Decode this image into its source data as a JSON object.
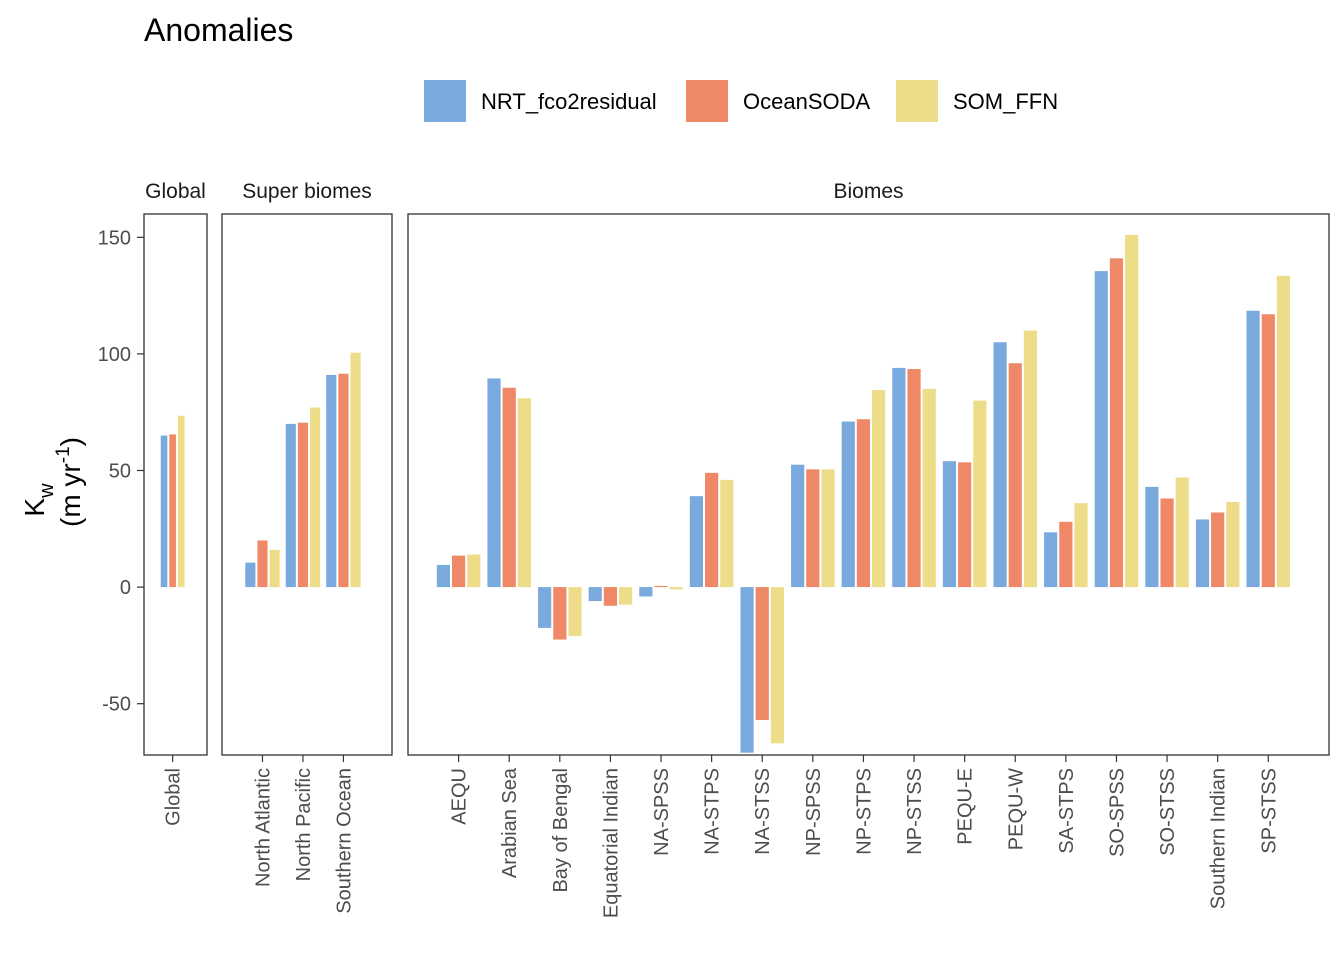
{
  "chart_data": {
    "type": "bar",
    "title": "Anomalies",
    "ylabel": {
      "base": "K",
      "sub": "w",
      "unit_open": "(m yr",
      "unit_sup": "-1",
      "unit_close": ")"
    },
    "ylim": [
      -72,
      160
    ],
    "yticks": [
      -50,
      0,
      50,
      100,
      150
    ],
    "legend_position": "top",
    "series": [
      {
        "name": "NRT_fco2residual",
        "color": "#7aaadd"
      },
      {
        "name": "OceanSODA",
        "color": "#ee8866"
      },
      {
        "name": "SOM_FFN",
        "color": "#eedd88"
      }
    ],
    "panels": [
      {
        "strip": "Global",
        "categories": [
          "Global"
        ],
        "values": [
          [
            65
          ],
          [
            65.5
          ],
          [
            73.5
          ]
        ]
      },
      {
        "strip": "Super biomes",
        "categories": [
          "North Atlantic",
          "North Pacific",
          "Southern Ocean"
        ],
        "values": [
          [
            10.5,
            70,
            91
          ],
          [
            20,
            70.5,
            91.5
          ],
          [
            16,
            77,
            100.5
          ]
        ]
      },
      {
        "strip": "Biomes",
        "categories": [
          "AEQU",
          "Arabian Sea",
          "Bay of Bengal",
          "Equatorial Indian",
          "NA-SPSS",
          "NA-STPS",
          "NA-STSS",
          "NP-SPSS",
          "NP-STPS",
          "NP-STSS",
          "PEQU-E",
          "PEQU-W",
          "SA-STPS",
          "SO-SPSS",
          "SO-STSS",
          "Southern Indian",
          "SP-STSS"
        ],
        "values": [
          [
            9.5,
            89.5,
            -17.5,
            -6,
            -4,
            39,
            -71,
            52.5,
            71,
            94,
            54,
            105,
            23.5,
            135.5,
            43,
            29,
            118.5
          ],
          [
            13.5,
            85.5,
            -22.5,
            -8,
            0.5,
            49,
            -57,
            50.5,
            72,
            93.5,
            53.5,
            96,
            28,
            141,
            38,
            32,
            117
          ],
          [
            14,
            81,
            -21,
            -7.5,
            -1,
            46,
            -67,
            50.5,
            84.5,
            85,
            80,
            110,
            36,
            151,
            47,
            36.5,
            133.5
          ]
        ]
      }
    ]
  }
}
